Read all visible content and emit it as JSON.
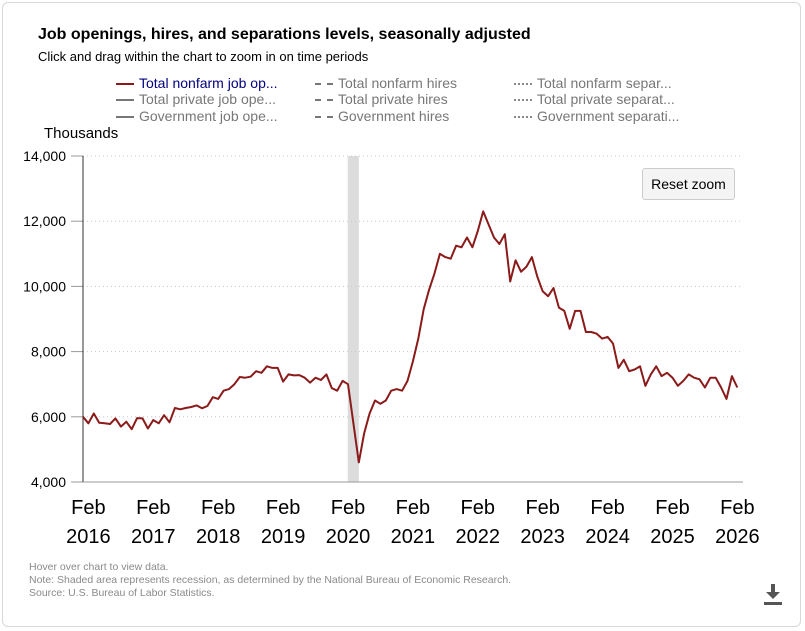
{
  "header": {
    "title": "Job openings, hires, and separations levels, seasonally adjusted",
    "subtitle": "Click and drag within the chart to zoom in on time periods"
  },
  "legend": {
    "items": [
      {
        "label": "Total nonfarm job op...",
        "style": "solid",
        "active": true
      },
      {
        "label": "Total nonfarm hires",
        "style": "dash",
        "active": false
      },
      {
        "label": "Total nonfarm separ...",
        "style": "dot",
        "active": false
      },
      {
        "label": "Total private job ope...",
        "style": "solid",
        "active": false
      },
      {
        "label": "Total private hires",
        "style": "dash",
        "active": false
      },
      {
        "label": "Total private separat...",
        "style": "dot",
        "active": false
      },
      {
        "label": "Government job ope...",
        "style": "solid",
        "active": false
      },
      {
        "label": "Government hires",
        "style": "dash",
        "active": false
      },
      {
        "label": "Government separati...",
        "style": "dot",
        "active": false
      }
    ]
  },
  "controls": {
    "reset_zoom_label": "Reset zoom",
    "download_icon": "download-icon"
  },
  "notes": {
    "hover": "Hover over chart to view data.",
    "note": "Note: Shaded area represents recession, as determined by the National Bureau of Economic Research.",
    "source": "Source: U.S. Bureau of Labor Statistics."
  },
  "chart_data": {
    "type": "line",
    "ylabel": "Thousands",
    "ylim": [
      4000,
      14000
    ],
    "yticks": [
      "14,000",
      "12,000",
      "10,000",
      "8,000",
      "6,000",
      "4,000"
    ],
    "ytick_values": [
      14000,
      12000,
      10000,
      8000,
      6000,
      4000
    ],
    "xticks": [
      {
        "month": "Feb",
        "year": "2016",
        "x": 2016.0833
      },
      {
        "month": "Feb",
        "year": "2017",
        "x": 2017.0833
      },
      {
        "month": "Feb",
        "year": "2018",
        "x": 2018.0833
      },
      {
        "month": "Feb",
        "year": "2019",
        "x": 2019.0833
      },
      {
        "month": "Feb",
        "year": "2020",
        "x": 2020.0833
      },
      {
        "month": "Feb",
        "year": "2021",
        "x": 2021.0833
      },
      {
        "month": "Feb",
        "year": "2022",
        "x": 2022.0833
      },
      {
        "month": "Feb",
        "year": "2023",
        "x": 2023.0833
      },
      {
        "month": "Feb",
        "year": "2024",
        "x": 2024.0833
      },
      {
        "month": "Feb",
        "year": "2025",
        "x": 2025.0833
      },
      {
        "month": "Feb",
        "year": "2026",
        "x": 2026.0833
      }
    ],
    "xlim": [
      2016.0,
      2026.17
    ],
    "grid": true,
    "recession": {
      "start": 2020.08,
      "end": 2020.25
    },
    "line_color": "#8b1a1a",
    "series": [
      {
        "name": "Total nonfarm job openings",
        "start": 2016.0,
        "step": 0.08333,
        "values": [
          6000,
          5800,
          6100,
          5820,
          5800,
          5780,
          5950,
          5700,
          5850,
          5620,
          5960,
          5950,
          5640,
          5900,
          5800,
          6050,
          5830,
          6270,
          6230,
          6270,
          6300,
          6350,
          6260,
          6330,
          6600,
          6550,
          6800,
          6850,
          7000,
          7220,
          7200,
          7230,
          7400,
          7350,
          7550,
          7500,
          7500,
          7080,
          7300,
          7270,
          7280,
          7200,
          7050,
          7200,
          7130,
          7300,
          6880,
          6800,
          7100,
          7000,
          5800,
          4600,
          5500,
          6100,
          6500,
          6400,
          6500,
          6800,
          6850,
          6800,
          7100,
          7700,
          8400,
          9300,
          9900,
          10400,
          11000,
          10900,
          10850,
          11250,
          11200,
          11500,
          11200,
          11700,
          12300,
          11900,
          11500,
          11300,
          11600,
          10150,
          10800,
          10450,
          10600,
          10900,
          10300,
          9850,
          9700,
          9950,
          9350,
          9250,
          8700,
          9250,
          9250,
          8600,
          8600,
          8550,
          8400,
          8450,
          8250,
          7500,
          7750,
          7400,
          7450,
          7550,
          6950,
          7300,
          7550,
          7250,
          7350,
          7200,
          6950,
          7100,
          7300,
          7200,
          7150,
          6900,
          7200,
          7200,
          6900,
          6550,
          7250,
          6900
        ]
      }
    ]
  }
}
